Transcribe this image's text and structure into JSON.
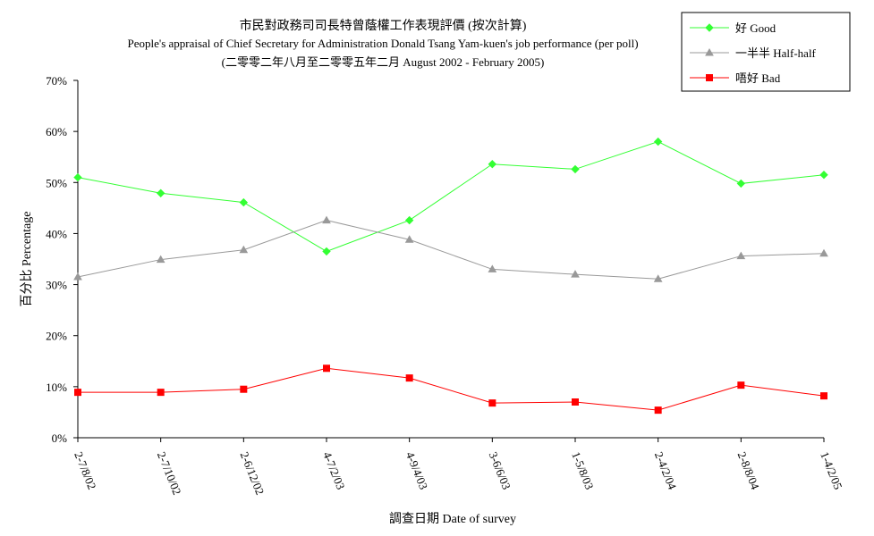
{
  "chart_data": {
    "type": "line",
    "title_lines": [
      "市民對政務司司長特曾蔭權工作表現評價 (按次計算)",
      "People's appraisal of Chief Secretary for Administration Donald Tsang Yam-kuen's job performance (per poll)",
      "(二零零二年八月至二零零五年二月 August 2002 - February 2005)"
    ],
    "xlabel": "調查日期 Date of survey",
    "ylabel": "百分比 Percentage",
    "ylim": [
      0,
      70
    ],
    "yticks": [
      0,
      10,
      20,
      30,
      40,
      50,
      60,
      70
    ],
    "ytick_labels": [
      "0%",
      "10%",
      "20%",
      "30%",
      "40%",
      "50%",
      "60%",
      "70%"
    ],
    "categories": [
      "2-7/8/02",
      "2-7/10/02",
      "2-6/12/02",
      "4-7/2/03",
      "4-9/4/03",
      "3-6/6/03",
      "1-5/8/03",
      "2-4/2/04",
      "2-8/8/04",
      "1-4/2/05"
    ],
    "grid": false,
    "legend_position": "top-right",
    "series": [
      {
        "name": "好 Good",
        "color": "#33ff33",
        "marker": "diamond",
        "values": [
          51.0,
          47.9,
          46.1,
          36.5,
          42.6,
          53.6,
          52.6,
          58.0,
          49.8,
          51.5
        ]
      },
      {
        "name": "一半半 Half-half",
        "color": "#999999",
        "marker": "triangle",
        "values": [
          31.5,
          34.9,
          36.8,
          42.6,
          38.8,
          33.0,
          32.0,
          31.1,
          35.6,
          36.1
        ]
      },
      {
        "name": "唔好 Bad",
        "color": "#ff0000",
        "marker": "square",
        "values": [
          8.9,
          8.9,
          9.5,
          13.6,
          11.7,
          6.8,
          7.0,
          5.4,
          10.3,
          8.2
        ]
      }
    ]
  }
}
